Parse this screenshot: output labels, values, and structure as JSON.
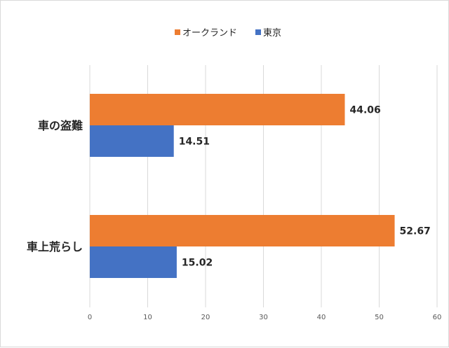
{
  "chart_data": {
    "type": "bar",
    "orientation": "horizontal",
    "categories": [
      "車の盗難",
      "車上荒らし"
    ],
    "series": [
      {
        "name": "オークランド",
        "values": [
          44.06,
          52.67
        ],
        "color": "#ED7D31"
      },
      {
        "name": "東京",
        "values": [
          14.51,
          15.02
        ],
        "color": "#4472C4"
      }
    ],
    "xlim": [
      0,
      60
    ],
    "xticks": [
      0,
      10,
      20,
      30,
      40,
      50,
      60
    ],
    "grid": true,
    "legend_position": "top",
    "data_labels": true
  }
}
